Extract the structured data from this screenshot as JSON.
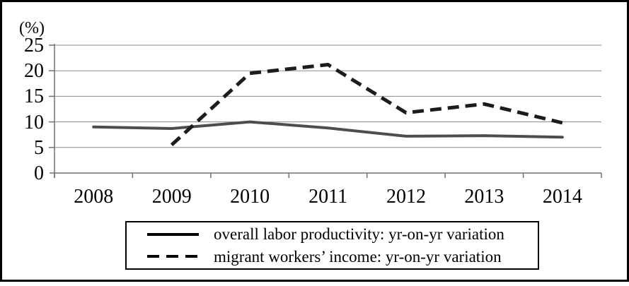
{
  "chart_data": {
    "type": "line",
    "title": "",
    "unit_label": "(%)",
    "categories": [
      "2008",
      "2009",
      "2010",
      "2011",
      "2012",
      "2013",
      "2014"
    ],
    "series": [
      {
        "name": "overall labor productivity: yr-on-yr variation",
        "line_style": "solid",
        "color": "#4d4d4d",
        "values": [
          9.0,
          8.7,
          10.0,
          8.8,
          7.2,
          7.3,
          7.0
        ]
      },
      {
        "name": "migrant workers’ income: yr-on-yr variation",
        "line_style": "dashed",
        "color": "#1c1c1c",
        "values": [
          null,
          5.5,
          19.5,
          21.2,
          11.8,
          13.5,
          9.8
        ]
      }
    ],
    "y_ticks": [
      25,
      20,
      15,
      10,
      5,
      0
    ],
    "ylim": [
      0,
      25
    ],
    "grid": true,
    "legend_position": "bottom",
    "axis_color": "#707070",
    "grid_color": "#8a8a8a"
  }
}
